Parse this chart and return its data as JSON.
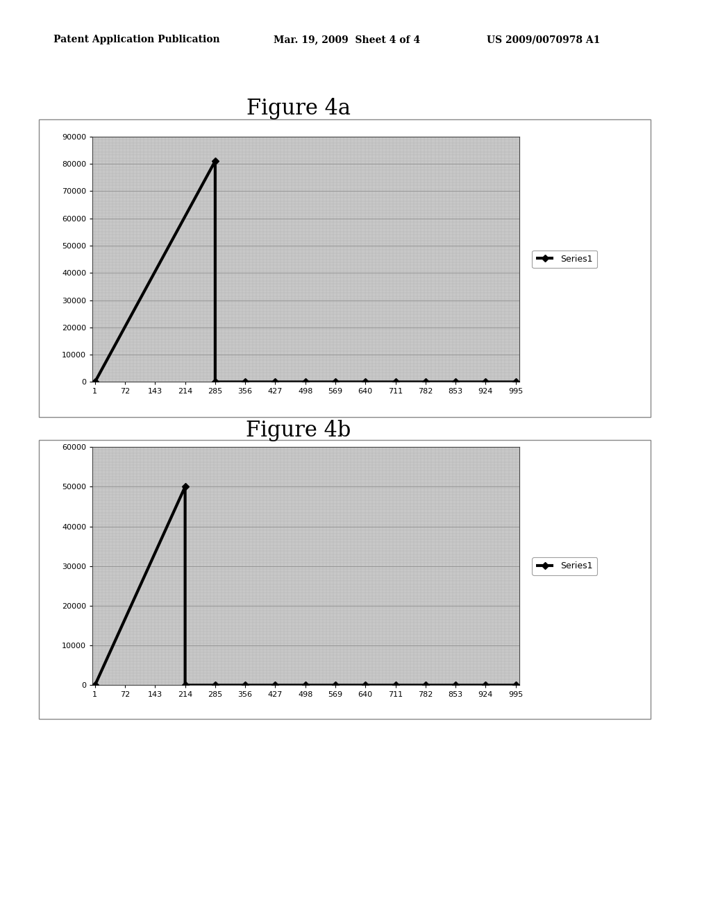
{
  "header_left": "Patent Application Publication",
  "header_mid": "Mar. 19, 2009  Sheet 4 of 4",
  "header_right": "US 2009/0070978 A1",
  "fig4a": {
    "title": "Figure 4a",
    "x_ticks": [
      1,
      72,
      143,
      214,
      285,
      356,
      427,
      498,
      569,
      640,
      711,
      782,
      853,
      924,
      995
    ],
    "series_x": [
      1,
      285,
      285,
      356,
      427,
      498,
      569,
      640,
      711,
      782,
      853,
      924,
      995
    ],
    "series_y": [
      0,
      81000,
      0,
      0,
      0,
      0,
      0,
      0,
      0,
      0,
      0,
      0,
      0
    ],
    "ylim": [
      0,
      90000
    ],
    "y_ticks": [
      0,
      10000,
      20000,
      30000,
      40000,
      50000,
      60000,
      70000,
      80000,
      90000
    ],
    "legend_label": "Series1",
    "bg_color": "#c8c8c8",
    "line_color": "#000000"
  },
  "fig4b": {
    "title": "Figure 4b",
    "x_ticks": [
      1,
      72,
      143,
      214,
      285,
      356,
      427,
      498,
      569,
      640,
      711,
      782,
      853,
      924,
      995
    ],
    "series_x": [
      1,
      214,
      214,
      285,
      356,
      427,
      498,
      569,
      640,
      711,
      782,
      853,
      924,
      995
    ],
    "series_y": [
      0,
      50000,
      0,
      0,
      0,
      0,
      0,
      0,
      0,
      0,
      0,
      0,
      0,
      0
    ],
    "ylim": [
      0,
      60000
    ],
    "y_ticks": [
      0,
      10000,
      20000,
      30000,
      40000,
      50000,
      60000
    ],
    "legend_label": "Series1",
    "bg_color": "#c8c8c8",
    "line_color": "#000000"
  },
  "page_bg": "#ffffff",
  "header_fontsize": 10,
  "title_fontsize": 22,
  "tick_fontsize": 8,
  "legend_fontsize": 9,
  "line_width": 3.0,
  "marker_size": 5
}
